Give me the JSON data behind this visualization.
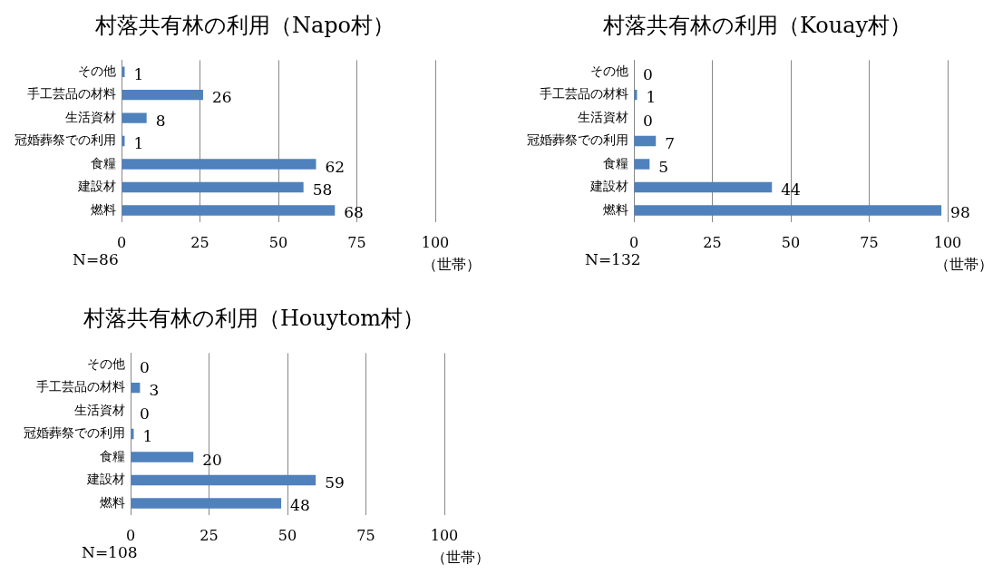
{
  "chart_data": [
    {
      "type": "bar",
      "orientation": "horizontal",
      "title": "村落共有林の利用（Napo村）",
      "categories": [
        "その他",
        "手工芸品の材料",
        "生活資材",
        "冠婚葬祭での利用",
        "食糧",
        "建設材",
        "燃料"
      ],
      "values": [
        1,
        26,
        8,
        1,
        62,
        58,
        68
      ],
      "color": "#4f81bd",
      "xlim": [
        0,
        100
      ],
      "xticks": [
        0,
        25,
        50,
        75,
        100
      ],
      "grid": "x",
      "data_labels": true,
      "xlabel": "（世帯）",
      "annotations": [
        "N=86"
      ]
    },
    {
      "type": "bar",
      "orientation": "horizontal",
      "title": "村落共有林の利用（Kouay村）",
      "categories": [
        "その他",
        "手工芸品の材料",
        "生活資材",
        "冠婚葬祭での利用",
        "食糧",
        "建設材",
        "燃料"
      ],
      "values": [
        0,
        1,
        0,
        7,
        5,
        44,
        98
      ],
      "color": "#4f81bd",
      "xlim": [
        0,
        100
      ],
      "xticks": [
        0,
        25,
        50,
        75,
        100
      ],
      "grid": "x",
      "data_labels": true,
      "xlabel": "（世帯）",
      "annotations": [
        "N=132"
      ]
    },
    {
      "type": "bar",
      "orientation": "horizontal",
      "title": "村落共有林の利用（Houytom村）",
      "categories": [
        "その他",
        "手工芸品の材料",
        "生活資材",
        "冠婚葬祭での利用",
        "食糧",
        "建設材",
        "燃料"
      ],
      "values": [
        0,
        3,
        0,
        1,
        20,
        59,
        48
      ],
      "color": "#4f81bd",
      "xlim": [
        0,
        100
      ],
      "xticks": [
        0,
        25,
        50,
        75,
        100
      ],
      "grid": "x",
      "data_labels": true,
      "xlabel": "（世帯）",
      "annotations": [
        "N=108"
      ]
    }
  ]
}
